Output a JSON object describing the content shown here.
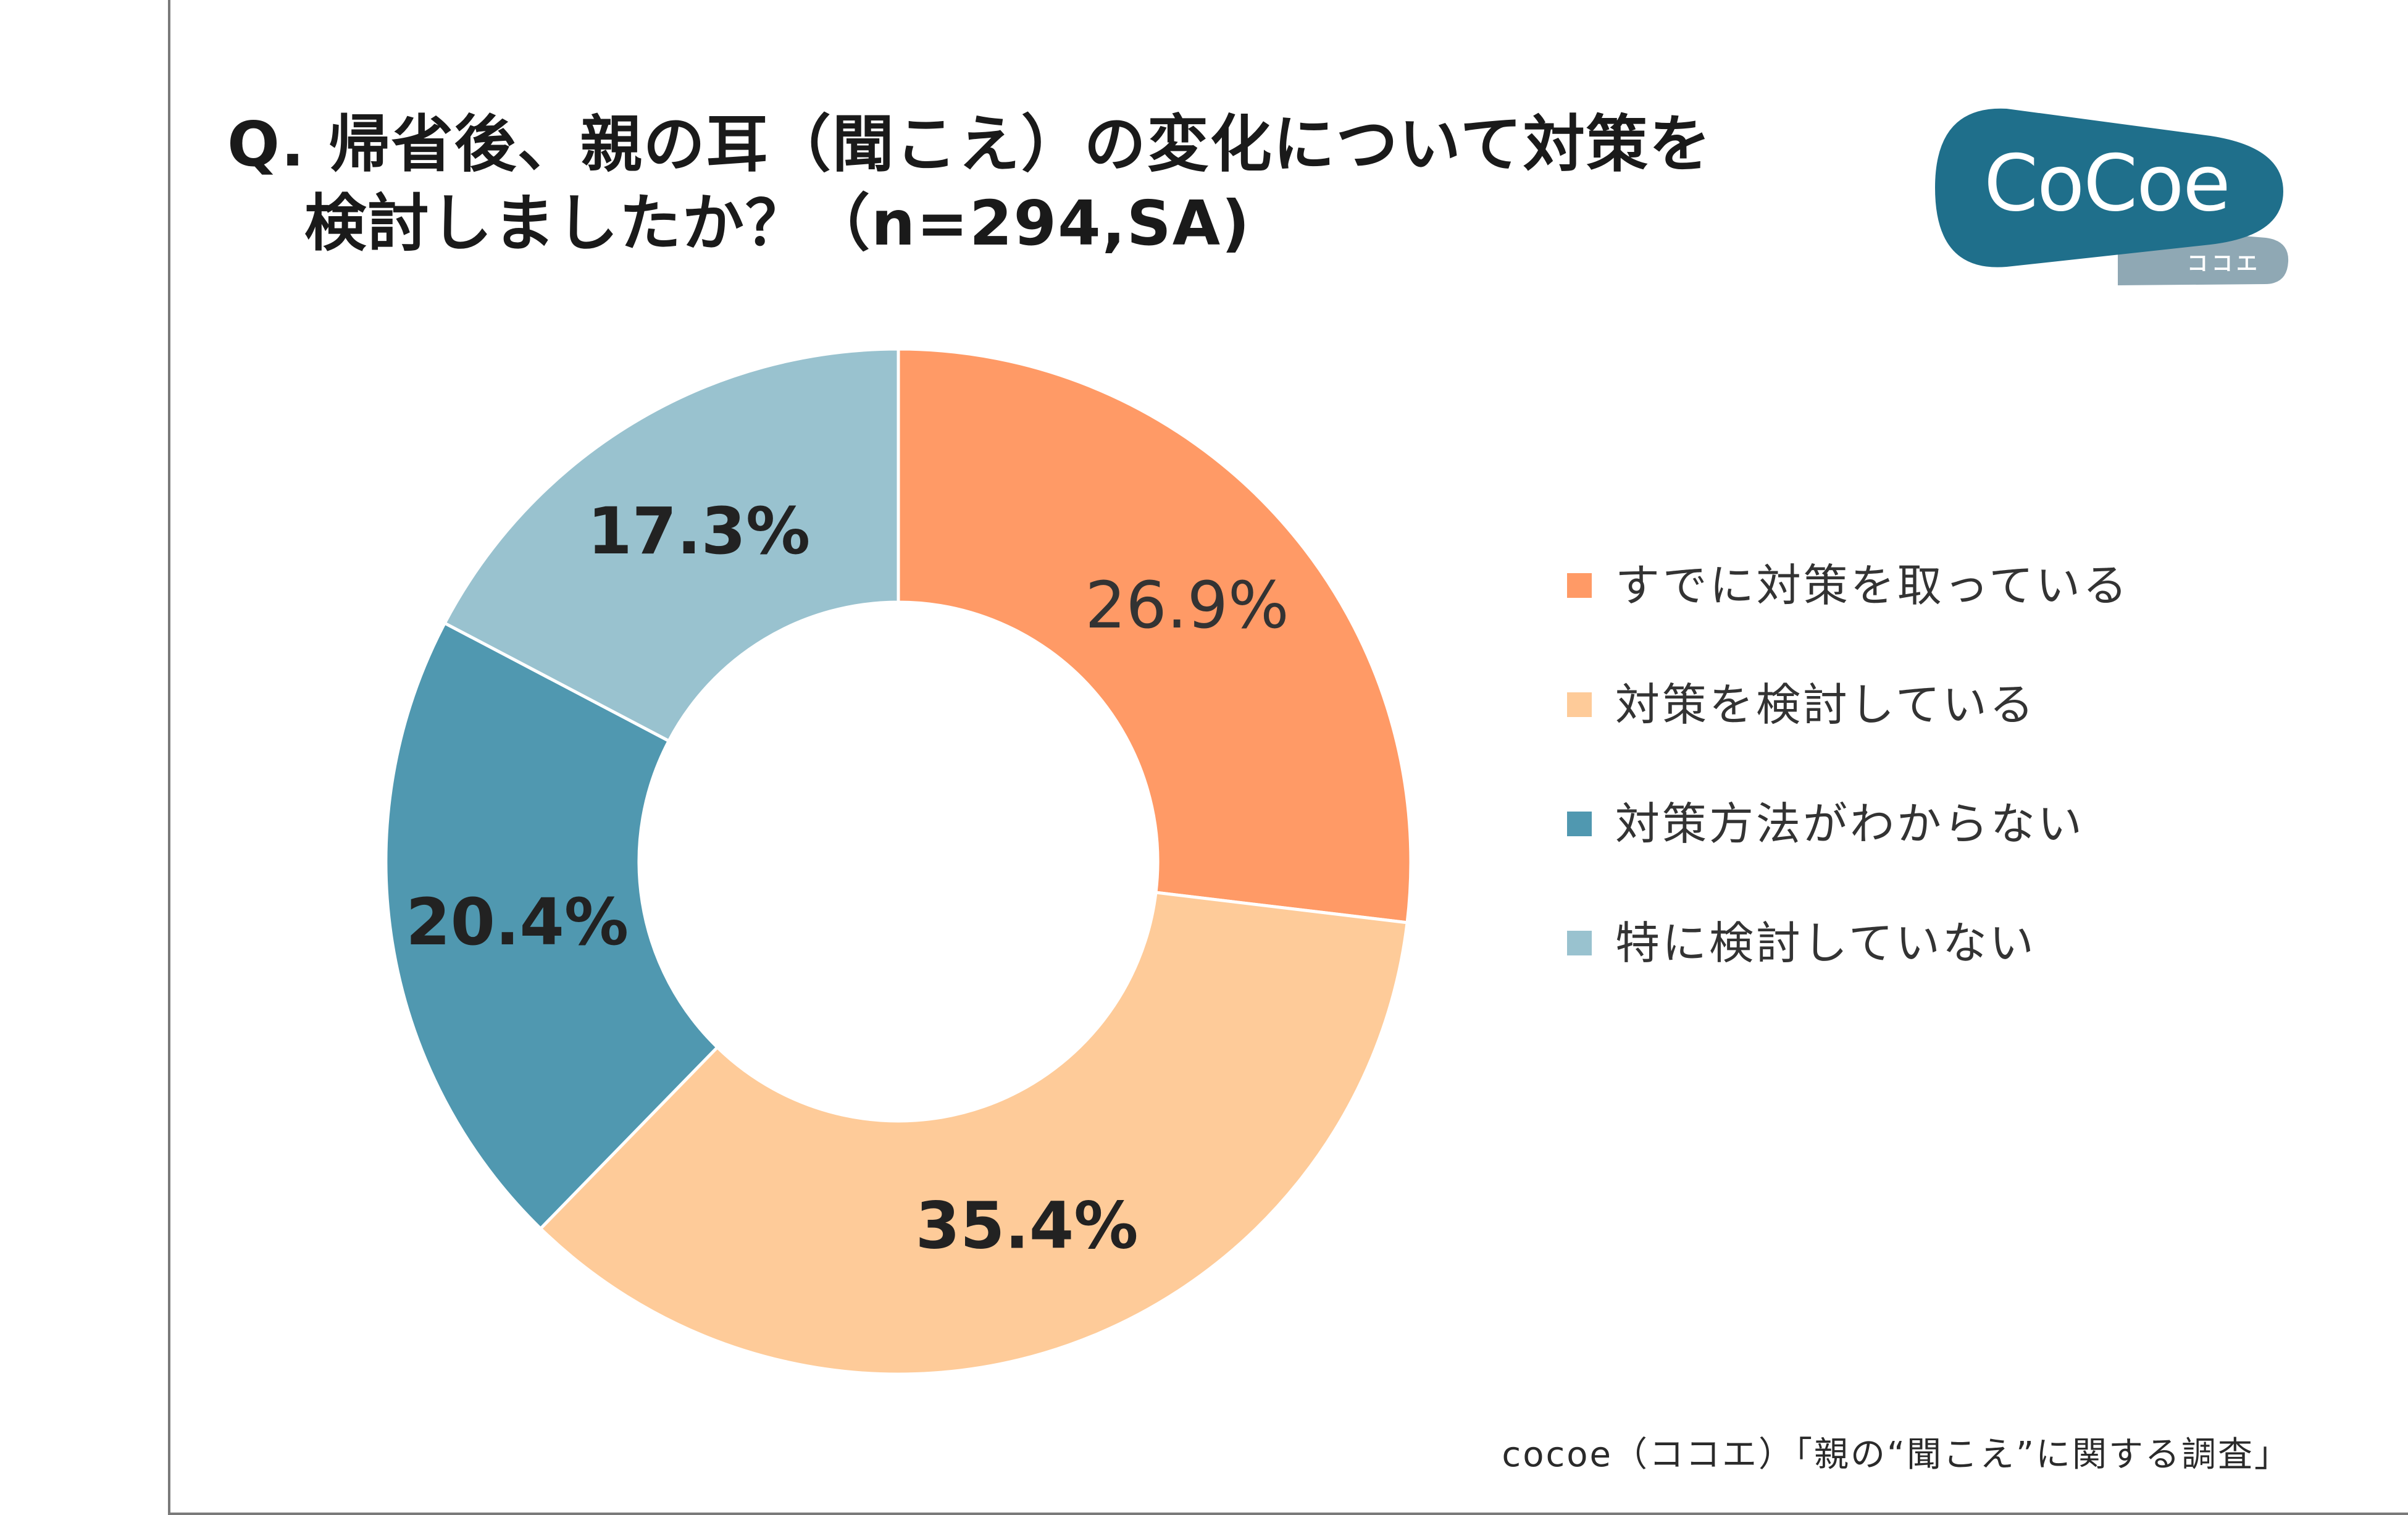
{
  "title": {
    "line1": "Q. 帰省後、親の耳（聞こえ）の変化について対策を",
    "line2": "検討しましたか？（n=294,SA)"
  },
  "logo": {
    "name": "CoCoe",
    "sub": "ココエ",
    "color": "#1f6f8b",
    "sub_color": "#8fa8b4"
  },
  "source": "cocoe（ココエ）「親の“聞こえ”に関する調査」",
  "chart_data": {
    "type": "pie",
    "donut": true,
    "start": "12 o'clock, clockwise",
    "title": "Q. 帰省後、親の耳（聞こえ）の変化について対策を検討しましたか？（n=294,SA)",
    "n": 294,
    "categories": [
      "すでに対策を取っている",
      "対策を検討している",
      "対策方法がわからない",
      "特に検討していない"
    ],
    "values": [
      26.9,
      35.4,
      20.4,
      17.3
    ],
    "labels": [
      "26.9%",
      "35.4%",
      "20.4%",
      "17.3%"
    ],
    "label_bold": [
      false,
      true,
      true,
      true
    ],
    "colors": [
      "#ff9a66",
      "#fecb99",
      "#5098b0",
      "#99c2cf"
    ],
    "legend_position": "right"
  }
}
